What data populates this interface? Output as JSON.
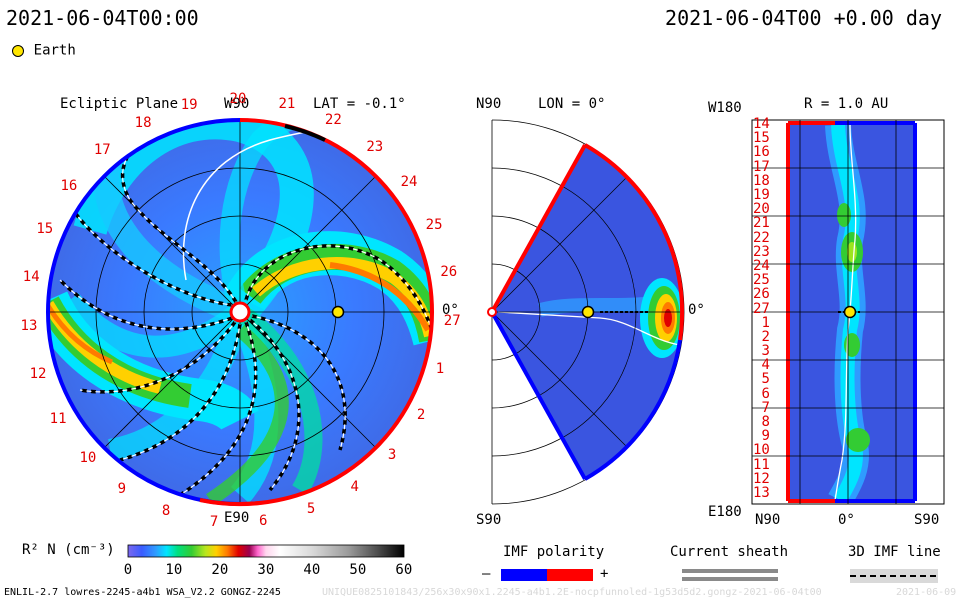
{
  "header": {
    "left_time": "2021-06-04T00:00",
    "right_time": "2021-06-04T00 +0.00 day",
    "legend_earth": "Earth"
  },
  "ecliptic": {
    "title": "Ecliptic Plane",
    "top_label": "W90",
    "bottom_label": "E90",
    "right_label": "0°",
    "lat": "LAT = -0.1°",
    "carrington": [
      "19",
      "20",
      "21",
      "22",
      "23",
      "24",
      "25",
      "26",
      "27",
      "1",
      "2",
      "3",
      "4",
      "5",
      "6",
      "7",
      "8",
      "9",
      "10",
      "11",
      "12",
      "13",
      "14",
      "15",
      "16",
      "17",
      "18"
    ]
  },
  "meridional": {
    "top": "N90",
    "bottom": "S90",
    "lon": "LON = 0°",
    "right": "0°"
  },
  "shell": {
    "title": "R = 1.0 AU",
    "top_left": "W180",
    "bottom_left": "E180",
    "x_labels": [
      "N90",
      "0°",
      "S90"
    ],
    "y_labels": [
      "14",
      "15",
      "16",
      "17",
      "18",
      "19",
      "20",
      "21",
      "22",
      "23",
      "24",
      "25",
      "26",
      "27",
      "1",
      "2",
      "3",
      "4",
      "5",
      "6",
      "7",
      "8",
      "9",
      "10",
      "11",
      "12",
      "13"
    ]
  },
  "colorbar": {
    "label": "R² N (cm⁻³)",
    "ticks": [
      "0",
      "10",
      "20",
      "30",
      "40",
      "50",
      "60"
    ],
    "colors": [
      "#7b68ee",
      "#3a5cff",
      "#2f9bff",
      "#00e5ff",
      "#00e080",
      "#33cc33",
      "#b6e61e",
      "#ffd000",
      "#ff7a00",
      "#e00000",
      "#9a0050",
      "#ff66cc",
      "#ffd6ee",
      "#ffffff",
      "#d8d8d8",
      "#9a9a9a",
      "#505050",
      "#000000"
    ]
  },
  "imf_legend": {
    "title": "IMF polarity",
    "minus": "–",
    "plus": "+",
    "neg_color": "#0000ff",
    "pos_color": "#ff0000"
  },
  "sheath_legend": {
    "title": "Current sheath"
  },
  "imf3d_legend": {
    "title": "3D IMF line"
  },
  "footer": {
    "left": "ENLIL-2.7 lowres-2245-a4b1 WSA_V2.2 GONGZ-2245",
    "middle": "UNIQUE0825101843/256x30x90x1.2245-a4b1.2E-nocpfunnoled-1g53d5d2.gongz-2021-06-04t00",
    "right": "2021-06-09"
  }
}
